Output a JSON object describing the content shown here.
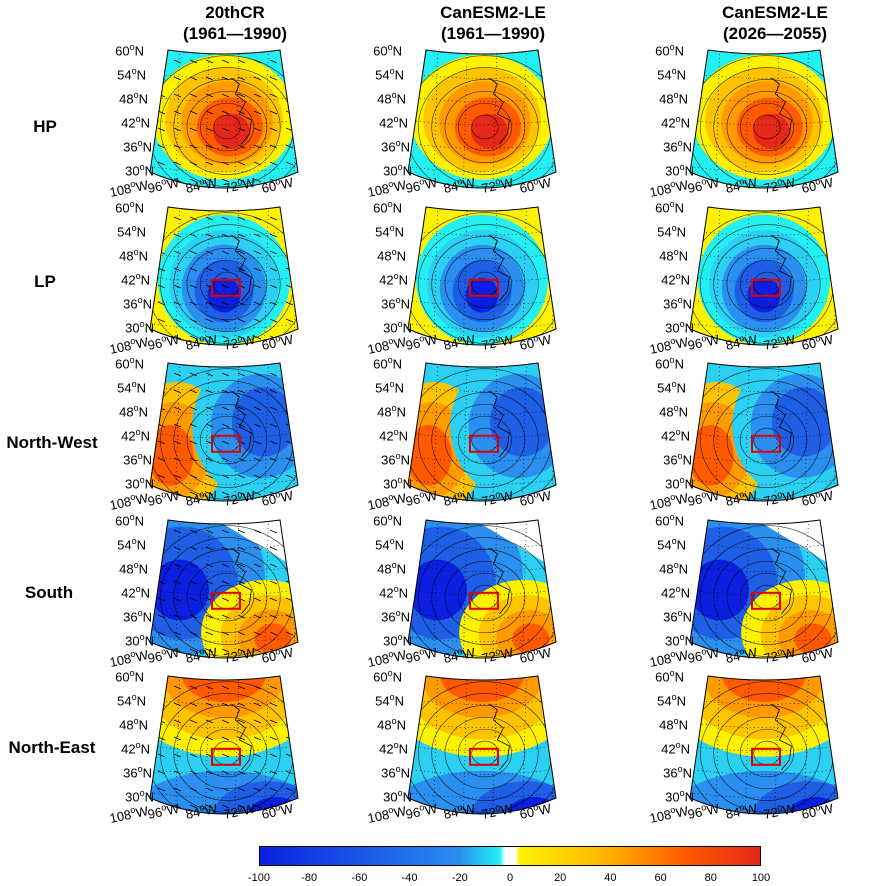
{
  "columns": [
    {
      "title_line1": "20thCR",
      "title_line2": "(1961—1990)"
    },
    {
      "title_line1": "CanESM2-LE",
      "title_line2": "(1961—1990)"
    },
    {
      "title_line1": "CanESM2-LE",
      "title_line2": "(2026—2055)"
    }
  ],
  "rows": [
    {
      "label": "HP",
      "pattern": "high"
    },
    {
      "label": "LP",
      "pattern": "low"
    },
    {
      "label": "North-West",
      "pattern": "west-high-east-low"
    },
    {
      "label": "South",
      "pattern": "northwest-low-southeast-high"
    },
    {
      "label": "North-East",
      "pattern": "north-high-south-low"
    }
  ],
  "lat_ticks": [
    "60",
    "54",
    "48",
    "42",
    "36",
    "30"
  ],
  "lon_ticks": [
    "108",
    "96",
    "84",
    "72",
    "60"
  ],
  "lat_suffix": "N",
  "lon_suffix": "W",
  "degree": "o",
  "colorbar": {
    "ticks": [
      "-100",
      "-80",
      "-60",
      "-40",
      "-20",
      "0",
      "20",
      "40",
      "60",
      "80",
      "100"
    ],
    "min": -100,
    "max": 100
  },
  "colors": {
    "deep_blue": "#0a1fe0",
    "blue": "#1f5fe6",
    "mid_blue": "#2b8ff0",
    "light_blue": "#2bd0f2",
    "cyan": "#24f0f4",
    "white": "#ffffff",
    "yellow": "#fff200",
    "gold": "#ffc400",
    "orange": "#ff9a00",
    "dark_orange": "#ff5a00",
    "red": "#e5281a",
    "box": "#e00000"
  }
}
